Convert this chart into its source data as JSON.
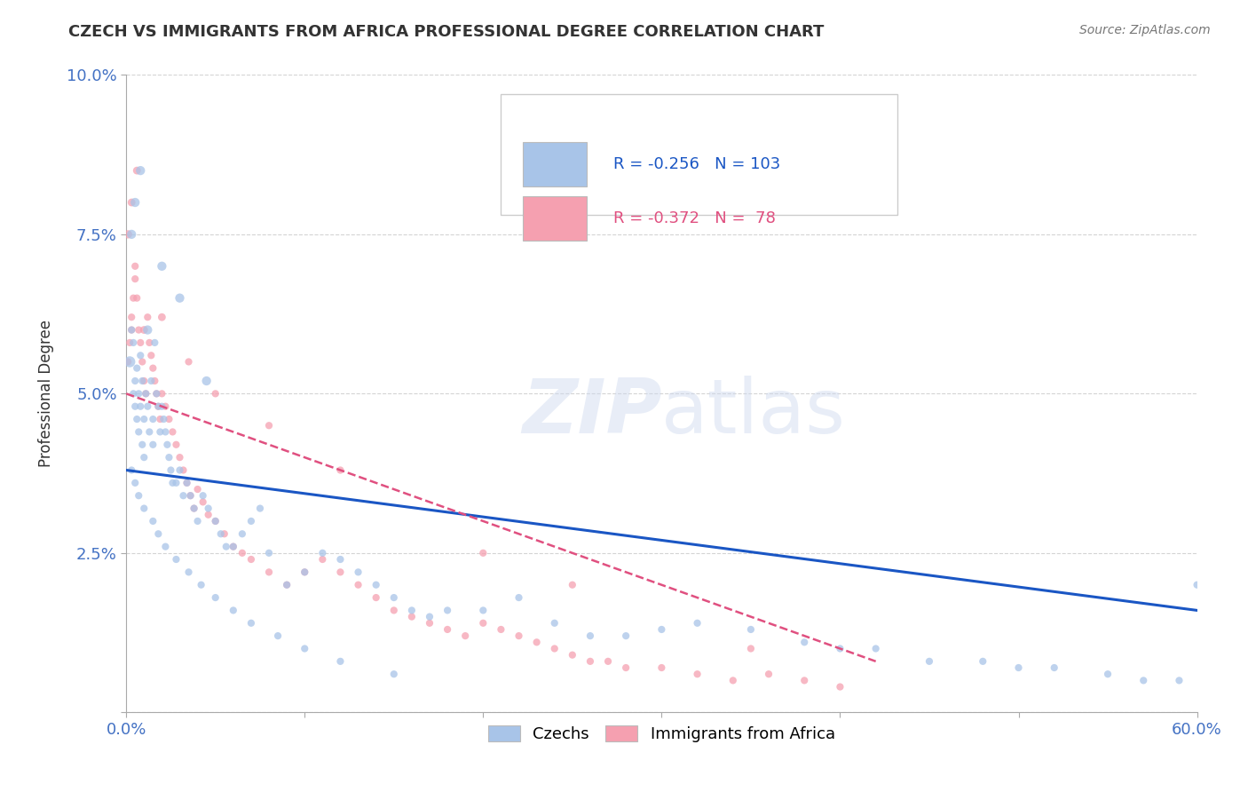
{
  "title": "CZECH VS IMMIGRANTS FROM AFRICA PROFESSIONAL DEGREE CORRELATION CHART",
  "source": "Source: ZipAtlas.com",
  "ylabel": "Professional Degree",
  "watermark": "ZIPatlas",
  "xmin": 0.0,
  "xmax": 0.6,
  "ymin": 0.0,
  "ymax": 0.1,
  "xticks": [
    0.0,
    0.1,
    0.2,
    0.3,
    0.4,
    0.5,
    0.6
  ],
  "yticks": [
    0.0,
    0.025,
    0.05,
    0.075,
    0.1
  ],
  "ytick_labels": [
    "",
    "2.5%",
    "5.0%",
    "7.5%",
    "10.0%"
  ],
  "xtick_labels": [
    "0.0%",
    "",
    "",
    "",
    "",
    "",
    "60.0%"
  ],
  "czechs": {
    "name": "Czechs",
    "color": "#a8c4e8",
    "line_color": "#1a56c4",
    "x": [
      0.002,
      0.003,
      0.004,
      0.004,
      0.005,
      0.005,
      0.006,
      0.006,
      0.007,
      0.007,
      0.008,
      0.008,
      0.009,
      0.009,
      0.01,
      0.01,
      0.011,
      0.012,
      0.013,
      0.014,
      0.015,
      0.015,
      0.016,
      0.017,
      0.018,
      0.019,
      0.02,
      0.021,
      0.022,
      0.023,
      0.024,
      0.025,
      0.026,
      0.028,
      0.03,
      0.032,
      0.034,
      0.036,
      0.038,
      0.04,
      0.043,
      0.046,
      0.05,
      0.053,
      0.056,
      0.06,
      0.065,
      0.07,
      0.075,
      0.08,
      0.09,
      0.1,
      0.11,
      0.12,
      0.13,
      0.14,
      0.15,
      0.16,
      0.17,
      0.18,
      0.2,
      0.22,
      0.24,
      0.26,
      0.28,
      0.3,
      0.32,
      0.35,
      0.38,
      0.4,
      0.42,
      0.45,
      0.48,
      0.5,
      0.52,
      0.55,
      0.57,
      0.59,
      0.6,
      0.003,
      0.005,
      0.008,
      0.012,
      0.02,
      0.03,
      0.045,
      0.003,
      0.005,
      0.007,
      0.01,
      0.015,
      0.018,
      0.022,
      0.028,
      0.035,
      0.042,
      0.05,
      0.06,
      0.07,
      0.085,
      0.1,
      0.12,
      0.15
    ],
    "y": [
      0.055,
      0.06,
      0.05,
      0.058,
      0.048,
      0.052,
      0.046,
      0.054,
      0.044,
      0.05,
      0.048,
      0.056,
      0.042,
      0.052,
      0.046,
      0.04,
      0.05,
      0.048,
      0.044,
      0.052,
      0.046,
      0.042,
      0.058,
      0.05,
      0.048,
      0.044,
      0.048,
      0.046,
      0.044,
      0.042,
      0.04,
      0.038,
      0.036,
      0.036,
      0.038,
      0.034,
      0.036,
      0.034,
      0.032,
      0.03,
      0.034,
      0.032,
      0.03,
      0.028,
      0.026,
      0.026,
      0.028,
      0.03,
      0.032,
      0.025,
      0.02,
      0.022,
      0.025,
      0.024,
      0.022,
      0.02,
      0.018,
      0.016,
      0.015,
      0.016,
      0.016,
      0.018,
      0.014,
      0.012,
      0.012,
      0.013,
      0.014,
      0.013,
      0.011,
      0.01,
      0.01,
      0.008,
      0.008,
      0.007,
      0.007,
      0.006,
      0.005,
      0.005,
      0.02,
      0.075,
      0.08,
      0.085,
      0.06,
      0.07,
      0.065,
      0.052,
      0.038,
      0.036,
      0.034,
      0.032,
      0.03,
      0.028,
      0.026,
      0.024,
      0.022,
      0.02,
      0.018,
      0.016,
      0.014,
      0.012,
      0.01,
      0.008,
      0.006
    ],
    "sizes": [
      80,
      35,
      35,
      35,
      35,
      35,
      35,
      35,
      35,
      35,
      35,
      35,
      35,
      35,
      35,
      35,
      35,
      35,
      35,
      35,
      35,
      35,
      35,
      35,
      35,
      35,
      35,
      35,
      35,
      35,
      35,
      35,
      35,
      35,
      35,
      35,
      35,
      35,
      35,
      35,
      35,
      35,
      35,
      35,
      35,
      35,
      35,
      35,
      35,
      35,
      35,
      35,
      35,
      35,
      35,
      35,
      35,
      35,
      35,
      35,
      35,
      35,
      35,
      35,
      35,
      35,
      35,
      35,
      35,
      35,
      35,
      35,
      35,
      35,
      35,
      35,
      35,
      35,
      35,
      55,
      55,
      55,
      55,
      55,
      55,
      55,
      35,
      35,
      35,
      35,
      35,
      35,
      35,
      35,
      35,
      35,
      35,
      35,
      35,
      35,
      35,
      35,
      35
    ]
  },
  "africa": {
    "name": "Immigrants from Africa",
    "color": "#f5a0b0",
    "line_color": "#e05080",
    "x": [
      0.001,
      0.002,
      0.003,
      0.003,
      0.004,
      0.005,
      0.005,
      0.006,
      0.007,
      0.008,
      0.009,
      0.01,
      0.011,
      0.012,
      0.013,
      0.014,
      0.015,
      0.016,
      0.017,
      0.018,
      0.019,
      0.02,
      0.022,
      0.024,
      0.026,
      0.028,
      0.03,
      0.032,
      0.034,
      0.036,
      0.038,
      0.04,
      0.043,
      0.046,
      0.05,
      0.055,
      0.06,
      0.065,
      0.07,
      0.08,
      0.09,
      0.1,
      0.11,
      0.12,
      0.13,
      0.14,
      0.15,
      0.16,
      0.17,
      0.18,
      0.19,
      0.2,
      0.21,
      0.22,
      0.23,
      0.24,
      0.25,
      0.26,
      0.27,
      0.28,
      0.3,
      0.32,
      0.34,
      0.36,
      0.38,
      0.4,
      0.001,
      0.003,
      0.006,
      0.01,
      0.02,
      0.035,
      0.05,
      0.08,
      0.12,
      0.2,
      0.25,
      0.35
    ],
    "y": [
      0.055,
      0.058,
      0.062,
      0.06,
      0.065,
      0.07,
      0.068,
      0.065,
      0.06,
      0.058,
      0.055,
      0.052,
      0.05,
      0.062,
      0.058,
      0.056,
      0.054,
      0.052,
      0.05,
      0.048,
      0.046,
      0.05,
      0.048,
      0.046,
      0.044,
      0.042,
      0.04,
      0.038,
      0.036,
      0.034,
      0.032,
      0.035,
      0.033,
      0.031,
      0.03,
      0.028,
      0.026,
      0.025,
      0.024,
      0.022,
      0.02,
      0.022,
      0.024,
      0.022,
      0.02,
      0.018,
      0.016,
      0.015,
      0.014,
      0.013,
      0.012,
      0.014,
      0.013,
      0.012,
      0.011,
      0.01,
      0.009,
      0.008,
      0.008,
      0.007,
      0.007,
      0.006,
      0.005,
      0.006,
      0.005,
      0.004,
      0.075,
      0.08,
      0.085,
      0.06,
      0.062,
      0.055,
      0.05,
      0.045,
      0.038,
      0.025,
      0.02,
      0.01
    ],
    "sizes": [
      35,
      35,
      35,
      35,
      35,
      35,
      35,
      35,
      35,
      35,
      35,
      35,
      35,
      35,
      35,
      35,
      35,
      35,
      35,
      35,
      35,
      35,
      35,
      35,
      35,
      35,
      35,
      35,
      35,
      35,
      35,
      35,
      35,
      35,
      35,
      35,
      35,
      35,
      35,
      35,
      35,
      35,
      35,
      35,
      35,
      35,
      35,
      35,
      35,
      35,
      35,
      35,
      35,
      35,
      35,
      35,
      35,
      35,
      35,
      35,
      35,
      35,
      35,
      35,
      35,
      35,
      45,
      40,
      40,
      40,
      40,
      35,
      35,
      35,
      35,
      35,
      35,
      35
    ]
  },
  "trendline_czechs": {
    "x_start": 0.0,
    "x_end": 0.6,
    "y_start": 0.038,
    "y_end": 0.016,
    "color": "#1a56c4",
    "linewidth": 2.2
  },
  "trendline_africa": {
    "x_start": 0.0,
    "x_end": 0.42,
    "y_start": 0.05,
    "y_end": 0.008,
    "color": "#e05080",
    "linewidth": 1.8,
    "linestyle": "--"
  },
  "legend": {
    "czechs_color": "#a8c4e8",
    "africa_color": "#f5a0b0",
    "text_color": "#1a56c4",
    "africa_text_color": "#e05080"
  },
  "background_color": "#ffffff",
  "grid_color": "#d0d0d0",
  "axis_color": "#aaaaaa",
  "title_color": "#333333",
  "source_color": "#777777",
  "tick_label_color": "#4472c4",
  "watermark_color": "#ccd8ee",
  "watermark_alpha": 0.45
}
